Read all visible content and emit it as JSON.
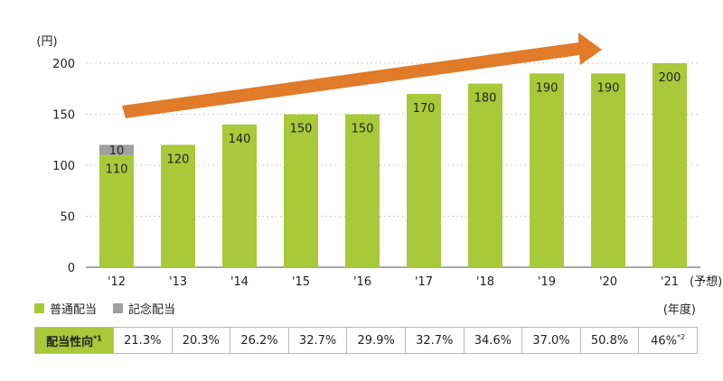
{
  "chart_data": {
    "type": "bar",
    "stacked": true,
    "y_unit": "(円)",
    "ylim": [
      0,
      200
    ],
    "yticks": [
      0,
      50,
      100,
      150,
      200
    ],
    "grid": true,
    "categories": [
      "'12",
      "'13",
      "'14",
      "'15",
      "'16",
      "'17",
      "'18",
      "'19",
      "'20",
      "'21"
    ],
    "x_suffix": "(予想)",
    "x_unit": "(年度)",
    "series": [
      {
        "name": "普通配当",
        "values": [
          110,
          120,
          140,
          150,
          150,
          170,
          180,
          190,
          190,
          200
        ]
      },
      {
        "name": "記念配当",
        "values": [
          10,
          null,
          null,
          null,
          null,
          null,
          null,
          null,
          null,
          null
        ]
      }
    ],
    "trend_arrow": true
  },
  "colors": {
    "regular": "#a9c83a",
    "commemorative": "#a0a0a0",
    "arrow": "#e07b2a",
    "grid": "#cccccc"
  },
  "legend": {
    "regular": "普通配当",
    "commemorative": "記念配当"
  },
  "payout_table": {
    "header": "配当性向",
    "header_note": "*1",
    "values": [
      "21.3%",
      "20.3%",
      "26.2%",
      "32.7%",
      "29.9%",
      "32.7%",
      "34.6%",
      "37.0%",
      "50.8%",
      "46%"
    ],
    "last_note": "*2"
  }
}
